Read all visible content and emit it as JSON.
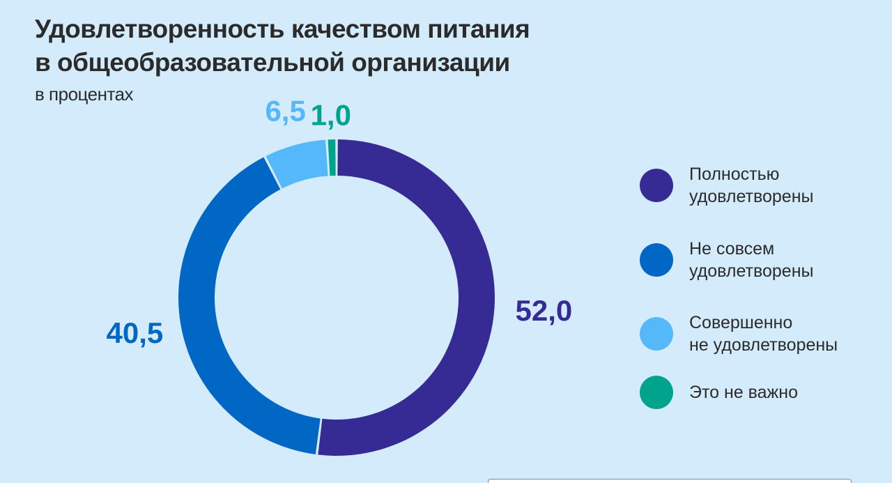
{
  "title_line1": "Удовлетворенность качеством питания",
  "title_line2": "в общеобразовательной организации",
  "subtitle": "в процентах",
  "chart_data": {
    "type": "pie",
    "donut": true,
    "title": "Удовлетворенность качеством питания в общеобразовательной организации",
    "subtitle": "в процентах",
    "categories": [
      "Полностью удовлетворены",
      "Не совсем удовлетворены",
      "Совершенно не удовлетворены",
      "Это не важно"
    ],
    "values": [
      52.0,
      40.5,
      6.5,
      1.0
    ],
    "value_labels": [
      "52,0",
      "40,5",
      "6,5",
      "1,0"
    ],
    "colors": [
      "#362b94",
      "#0068c4",
      "#55b8fb",
      "#00a38b"
    ],
    "legend_placement": "right"
  },
  "legend": [
    {
      "label": "Полностью\nудовлетворены",
      "color": "#362b94"
    },
    {
      "label": "Не совсем\nудовлетворены",
      "color": "#0068c4"
    },
    {
      "label": "Совершенно\nне удовлетворены",
      "color": "#55b8fb"
    },
    {
      "label": "Это не важно",
      "color": "#00a38b"
    }
  ]
}
